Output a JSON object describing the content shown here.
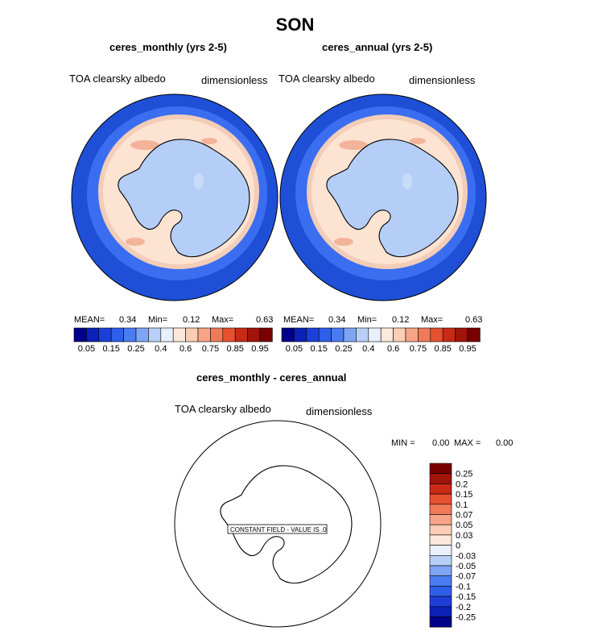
{
  "title": "SON",
  "colors": {
    "ocean_far": "#1e4fd6",
    "ocean_mid": "#3a6df0",
    "ice_edge": "#f2cdb8",
    "sea_ice": "#fde3d2",
    "patches": "#f3b49b",
    "land": "#b4cef7",
    "land_high": "#c8dcf9"
  },
  "panels": [
    {
      "subtitle": "ceres_monthly (yrs 2-5)",
      "variable": "TOA clearsky albedo",
      "units": "dimensionless",
      "stats": {
        "mean_label": "MEAN=",
        "mean": "0.34",
        "min_label": "Min=",
        "min": "0.12",
        "max_label": "Max=",
        "max": "0.63"
      }
    },
    {
      "subtitle": "ceres_annual (yrs 2-5)",
      "variable": "TOA clearsky albedo",
      "units": "dimensionless",
      "stats": {
        "mean_label": "MEAN=",
        "mean": "0.34",
        "min_label": "Min=",
        "min": "0.12",
        "max_label": "Max=",
        "max": "0.63"
      }
    }
  ],
  "colorbar": {
    "colors": [
      "#00008a",
      "#0b21b7",
      "#1d3fd8",
      "#2d5fe8",
      "#4a7cf0",
      "#7ea4f4",
      "#b8d0f8",
      "#e8f0fc",
      "#fde8dc",
      "#fbcdb5",
      "#f7a487",
      "#f07a58",
      "#e6512f",
      "#c92a15",
      "#a0140a",
      "#7a0000"
    ],
    "labels": [
      "0.05",
      "0.15",
      "0.25",
      "0.4",
      "0.6",
      "0.75",
      "0.85",
      "0.95"
    ]
  },
  "diff": {
    "subtitle": "ceres_monthly - ceres_annual",
    "variable": "TOA clearsky albedo",
    "units": "dimensionless",
    "min_label": "MIN =",
    "min": "0.00",
    "max_label": "MAX =",
    "max": "0.00",
    "annotation": "CONSTANT FIELD - VALUE IS .0",
    "colorbar": {
      "colors": [
        "#7a0000",
        "#a0140a",
        "#c92a15",
        "#e6512f",
        "#f07a58",
        "#f7a487",
        "#fbcdb5",
        "#fde8dc",
        "#e8f0fc",
        "#b8d0f8",
        "#7ea4f4",
        "#4a7cf0",
        "#2d5fe8",
        "#1d3fd8",
        "#0b21b7",
        "#00008a"
      ],
      "labels": [
        "0.25",
        "0.2",
        "0.15",
        "0.1",
        "0.07",
        "0.05",
        "0.03",
        "0",
        "-0.03",
        "-0.05",
        "-0.07",
        "-0.1",
        "-0.15",
        "-0.2",
        "-0.25"
      ]
    }
  },
  "chart_data": {
    "type": "heatmap",
    "title": "SON",
    "fields": [
      {
        "name": "ceres_monthly (yrs 2-5)",
        "mean": 0.34,
        "min": 0.12,
        "max": 0.63
      },
      {
        "name": "ceres_annual (yrs 2-5)",
        "mean": 0.34,
        "min": 0.12,
        "max": 0.63
      },
      {
        "name": "ceres_monthly - ceres_annual",
        "min": 0.0,
        "max": 0.0,
        "constant_value": 0
      }
    ],
    "levels": [
      0.05,
      0.15,
      0.25,
      0.4,
      0.6,
      0.75,
      0.85,
      0.95
    ],
    "diff_levels": [
      -0.25,
      -0.2,
      -0.15,
      -0.1,
      -0.07,
      -0.05,
      -0.03,
      0,
      0.03,
      0.05,
      0.07,
      0.1,
      0.15,
      0.2,
      0.25
    ]
  }
}
